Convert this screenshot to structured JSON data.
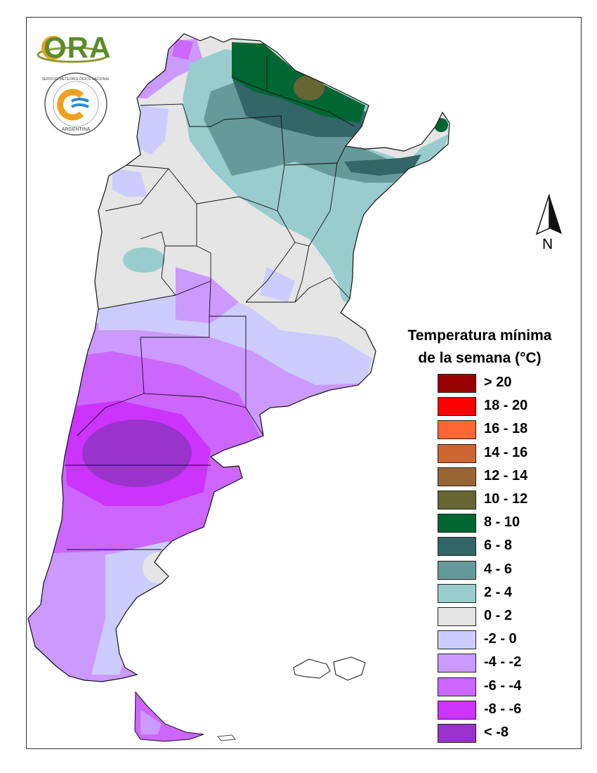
{
  "map": {
    "legend_title_line1": "Temperatura mínima",
    "legend_title_line2": "de la semana (°C)",
    "north_label": "N",
    "logo_ora_text": "ORA",
    "logo_smn_text": "SERVICIO METEOROLÓGICO NACIONAL · ARGENTINA",
    "legend": [
      {
        "label": "> 20",
        "color": "#990000"
      },
      {
        "label": "18 - 20",
        "color": "#ff0000"
      },
      {
        "label": "16 - 18",
        "color": "#ff6633"
      },
      {
        "label": "14 - 16",
        "color": "#cc6633"
      },
      {
        "label": "12 - 14",
        "color": "#996633"
      },
      {
        "label": "10 - 12",
        "color": "#666633"
      },
      {
        "label": "8 - 10",
        "color": "#006633"
      },
      {
        "label": "6 - 8",
        "color": "#336666"
      },
      {
        "label": "4 - 6",
        "color": "#669999"
      },
      {
        "label": "2 - 4",
        "color": "#99cccc"
      },
      {
        "label": "0 - 2",
        "color": "#e5e5e5"
      },
      {
        "label": "-2 - 0",
        "color": "#ccccff"
      },
      {
        "label": "-4 - -2",
        "color": "#cc99ff"
      },
      {
        "label": "-6 - -4",
        "color": "#cc66ff"
      },
      {
        "label": "-8 - -6",
        "color": "#cc33ff"
      },
      {
        "label": "< -8",
        "color": "#9933cc"
      }
    ]
  }
}
